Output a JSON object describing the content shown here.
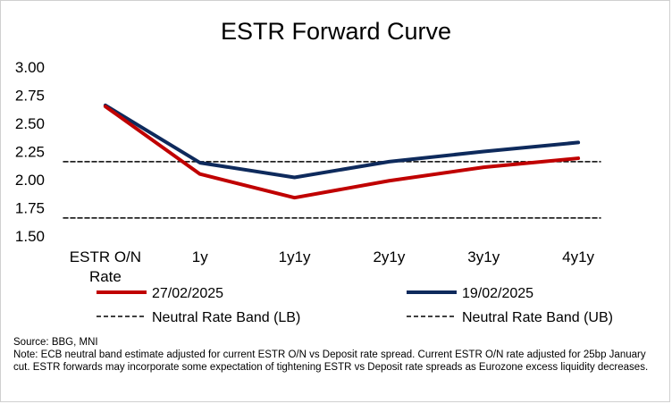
{
  "chart_data": {
    "type": "line",
    "title": "ESTR Forward Curve",
    "categories": [
      "ESTR O/N Rate",
      "1y",
      "1y1y",
      "2y1y",
      "3y1y",
      "4y1y"
    ],
    "ylim": [
      1.5,
      3.0
    ],
    "yticks": [
      "3.00",
      "2.75",
      "2.50",
      "2.25",
      "2.00",
      "1.75",
      "1.50"
    ],
    "ytick_values": [
      3.0,
      2.75,
      2.5,
      2.25,
      2.0,
      1.75,
      1.5
    ],
    "grid": false,
    "legend_position": "bottom",
    "series": [
      {
        "name": "27/02/2025",
        "color": "#C00000",
        "style": "solid",
        "values": [
          2.65,
          2.05,
          1.84,
          1.99,
          2.11,
          2.19
        ]
      },
      {
        "name": "19/02/2025",
        "color": "#0E2A5C",
        "style": "solid",
        "values": [
          2.66,
          2.15,
          2.02,
          2.16,
          2.25,
          2.33
        ]
      },
      {
        "name": "Neutral Rate Band (LB)",
        "color": "#000000",
        "style": "dashed",
        "values": [
          1.66,
          1.66,
          1.66,
          1.66,
          1.66,
          1.66
        ]
      },
      {
        "name": "Neutral Rate Band (UB)",
        "color": "#000000",
        "style": "dashed",
        "values": [
          2.16,
          2.16,
          2.16,
          2.16,
          2.16,
          2.16
        ]
      }
    ]
  },
  "footnote": {
    "source": "Source: BBG, MNI",
    "note": "Note: ECB neutral band estimate adjusted for current ESTR O/N vs Deposit rate spread. Current ESTR O/N rate adjusted for 25bp January cut. ESTR forwards may incorporate some expectation of tightening ESTR vs Deposit rate spreads as Eurozone excess liquidity decreases."
  }
}
